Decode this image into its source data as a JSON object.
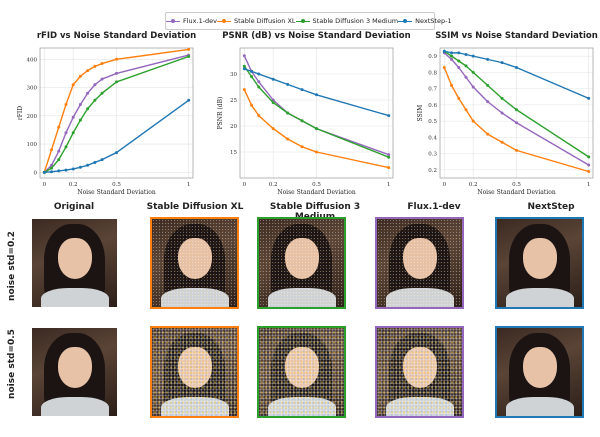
{
  "legend": [
    {
      "name": "Flux.1-dev",
      "color": "#9467bd"
    },
    {
      "name": "Stable Diffusion XL",
      "color": "#ff7f0e"
    },
    {
      "name": "Stable Diffusion 3 Medium",
      "color": "#2ca02c"
    },
    {
      "name": "NextStep-1",
      "color": "#1f77b4"
    }
  ],
  "chart_data": [
    {
      "type": "line",
      "title": "rFID vs Noise Standard Deviation",
      "xlabel": "Noise Standard Deviation",
      "ylabel": "rFID",
      "x": [
        0.0,
        0.05,
        0.1,
        0.15,
        0.2,
        0.25,
        0.3,
        0.35,
        0.4,
        0.5,
        1.0
      ],
      "xticks": [
        0.0,
        0.2,
        0.5,
        1.0
      ],
      "yticks": [
        0,
        100,
        200,
        300,
        400
      ],
      "ylim": [
        -20,
        440
      ],
      "series": [
        {
          "name": "Flux.1-dev",
          "values": [
            0,
            25,
            75,
            140,
            195,
            240,
            280,
            310,
            330,
            350,
            415
          ]
        },
        {
          "name": "Stable Diffusion XL",
          "values": [
            0,
            80,
            160,
            240,
            310,
            340,
            360,
            375,
            385,
            400,
            435
          ]
        },
        {
          "name": "Stable Diffusion 3 Medium",
          "values": [
            0,
            15,
            45,
            90,
            140,
            185,
            225,
            255,
            280,
            320,
            410
          ]
        },
        {
          "name": "NextStep-1",
          "values": [
            0,
            2,
            5,
            8,
            12,
            18,
            25,
            35,
            45,
            70,
            255
          ]
        }
      ]
    },
    {
      "type": "line",
      "title": "PSNR (dB) vs Noise Standard Deviation",
      "xlabel": "Noise Standard Deviation",
      "ylabel": "PSNR (dB)",
      "x": [
        0.0,
        0.05,
        0.1,
        0.2,
        0.3,
        0.4,
        0.5,
        1.0
      ],
      "xticks": [
        0.0,
        0.2,
        0.5,
        1.0
      ],
      "yticks": [
        15,
        20,
        25,
        30
      ],
      "ylim": [
        10,
        35
      ],
      "series": [
        {
          "name": "Flux.1-dev",
          "values": [
            33.5,
            30.5,
            28.5,
            25.0,
            22.5,
            21.0,
            19.5,
            14.5
          ]
        },
        {
          "name": "Stable Diffusion XL",
          "values": [
            27.0,
            24.0,
            22.0,
            19.5,
            17.5,
            16.0,
            15.0,
            12.0
          ]
        },
        {
          "name": "Stable Diffusion 3 Medium",
          "values": [
            31.5,
            29.5,
            27.5,
            24.5,
            22.5,
            21.0,
            19.5,
            14.0
          ]
        },
        {
          "name": "NextStep-1",
          "values": [
            31.0,
            30.5,
            30.0,
            29.0,
            28.0,
            27.0,
            26.0,
            22.0
          ]
        }
      ]
    },
    {
      "type": "line",
      "title": "SSIM vs Noise Standard Deviation",
      "xlabel": "Noise Standard Deviation",
      "ylabel": "SSIM",
      "x": [
        0.0,
        0.05,
        0.1,
        0.15,
        0.2,
        0.3,
        0.4,
        0.5,
        1.0
      ],
      "xticks": [
        0.0,
        0.2,
        0.5,
        1.0
      ],
      "yticks": [
        0.2,
        0.3,
        0.4,
        0.5,
        0.6,
        0.7,
        0.8,
        0.9
      ],
      "ylim": [
        0.15,
        0.95
      ],
      "series": [
        {
          "name": "Flux.1-dev",
          "values": [
            0.92,
            0.88,
            0.83,
            0.77,
            0.71,
            0.62,
            0.55,
            0.49,
            0.23
          ]
        },
        {
          "name": "Stable Diffusion XL",
          "values": [
            0.83,
            0.72,
            0.64,
            0.57,
            0.5,
            0.42,
            0.37,
            0.32,
            0.19
          ]
        },
        {
          "name": "Stable Diffusion 3 Medium",
          "values": [
            0.93,
            0.9,
            0.87,
            0.84,
            0.8,
            0.72,
            0.64,
            0.57,
            0.28
          ]
        },
        {
          "name": "NextStep-1",
          "values": [
            0.93,
            0.92,
            0.92,
            0.91,
            0.9,
            0.88,
            0.86,
            0.83,
            0.64
          ]
        }
      ]
    }
  ],
  "grid": {
    "columns": [
      {
        "title": "Original",
        "border": ""
      },
      {
        "title": "Stable Diffusion XL",
        "border": "#ff7f0e"
      },
      {
        "title": "Stable Diffusion 3 Medium",
        "border": "#2ca02c"
      },
      {
        "title": "Flux.1-dev",
        "border": "#9467bd"
      },
      {
        "title": "NextStep",
        "border": "#1f77b4"
      }
    ],
    "rows": [
      {
        "label": "noise std=0.2",
        "noise": [
          0,
          1,
          1,
          1,
          0
        ]
      },
      {
        "label": "noise std=0.5",
        "noise": [
          0,
          2,
          2,
          2,
          0
        ]
      }
    ]
  }
}
